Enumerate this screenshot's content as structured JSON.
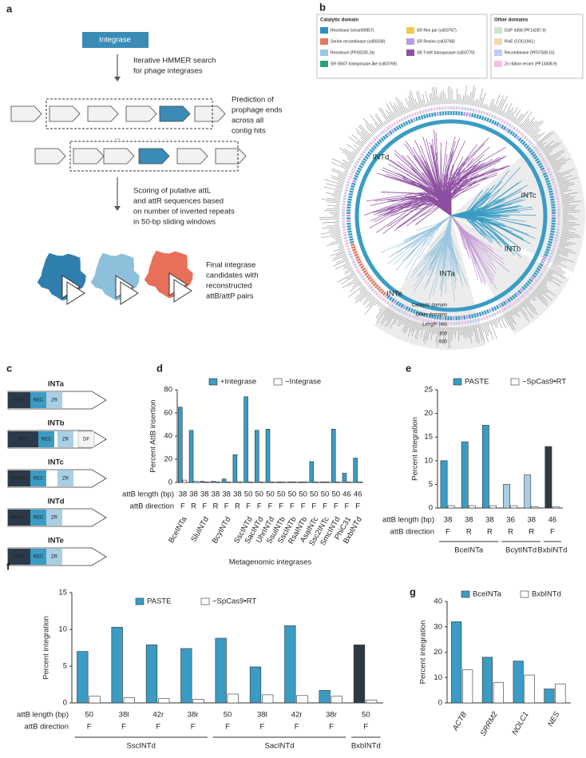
{
  "a": {
    "panel": "a",
    "box": "Integrase",
    "ellipsis": "...",
    "steps": [
      [
        "Iterative HMMER search",
        "for phage integrases"
      ],
      [
        "Prediction of",
        "prophage ends",
        "across all",
        "contig hits"
      ],
      [
        "Scoring of putative attL",
        "and attR sequences based",
        "on number of inverted repeats",
        "in 50-bp sliding windows"
      ],
      [
        "Final integrase",
        "candidates with",
        "reconstructed",
        "attB/attP pairs"
      ]
    ]
  },
  "b": {
    "panel": "b",
    "legend": [
      {
        "title": "Catalytic domain",
        "items": [
          {
            "name": "Resolvase (smart00857)",
            "color": "#2e8fbf"
          },
          {
            "name": "Serine recombinase (cd00338)",
            "color": "#e4785e"
          },
          {
            "name": "Resolvase (PF00239.24)",
            "color": "#9dc6df"
          },
          {
            "name": "SR IS607 transposase-like (cd03769)",
            "color": "#2aa37a"
          },
          {
            "name": "SR Res par (cd03767)",
            "color": "#f1c84b"
          },
          {
            "name": "SR ResInv (cd03768)",
            "color": "#b49de0"
          },
          {
            "name": "SR TndX transposase (cd03770)",
            "color": "#8d4ea0"
          }
        ]
      },
      {
        "title": "Other domains",
        "items": [
          {
            "name": "DUF 4368 (PF14287.9)",
            "color": "#c9e6c4"
          },
          {
            "name": "PinE (COG1961)",
            "color": "#f6d6b0"
          },
          {
            "name": "Recombinase (PF07508.16)",
            "color": "#c5c9ee"
          },
          {
            "name": "Zn ribbon recom (PF13408.9)",
            "color": "#f2c3e0"
          }
        ]
      }
    ],
    "clades": [
      "INTd",
      "INTc",
      "INTb",
      "INTa",
      "INTe"
    ],
    "ring_labels": [
      "Catalytic domain",
      "Other domains",
      "Length (aa)"
    ],
    "length_ticks": [
      300,
      600
    ]
  },
  "c": {
    "panel": "c",
    "proteins": [
      {
        "name": "INTa",
        "domains": [
          "RES",
          "REC",
          "ZR"
        ]
      },
      {
        "name": "INTb",
        "domains": [
          "RES",
          "REC",
          "ZR",
          "DF"
        ]
      },
      {
        "name": "INTc",
        "domains": [
          "SMRES",
          "REC",
          "ZR"
        ]
      },
      {
        "name": "INTd",
        "domains": [
          "SMRES",
          "REC",
          "ZR"
        ]
      },
      {
        "name": "INTe",
        "domains": [
          "RES",
          "REC",
          "ZR"
        ]
      }
    ]
  },
  "chart_data": [
    {
      "panel": "d",
      "type": "bar",
      "ylabel": "Percent AttB insertion",
      "xlabel": "Metagenomic integrases",
      "ylim": [
        0,
        80
      ],
      "yticks": [
        0,
        20,
        40,
        60,
        80
      ],
      "categories": [
        "BceINTa",
        null,
        "SluINTd",
        null,
        "BcyINTd",
        null,
        "SscINTd",
        "SacINTd",
        "UhrINTd",
        "SsuINTb",
        "SscINTb",
        "RsaINTb",
        "AsaINTc",
        "Ssc2INTc",
        "SmcINTd",
        "PhiC31",
        "BxbINTd"
      ],
      "rows": [
        {
          "label": "attB length (bp)",
          "values": [
            38,
            38,
            38,
            38,
            38,
            38,
            50,
            50,
            50,
            50,
            50,
            50,
            50,
            50,
            50,
            46,
            46
          ]
        },
        {
          "label": "attB direction",
          "values": [
            "F",
            "R",
            "F",
            "R",
            "F",
            "R",
            "F",
            "F",
            "F",
            "F",
            "F",
            "F",
            "F",
            "F",
            "F",
            "F",
            "F"
          ]
        }
      ],
      "series": [
        {
          "name": "+Integrase",
          "color": "#3a9cc4",
          "values": [
            65,
            45,
            1,
            1,
            3,
            24,
            74,
            45,
            46,
            0.5,
            0.5,
            0.5,
            18,
            0.5,
            46,
            8,
            21
          ]
        },
        {
          "name": "−Integrase",
          "color": "#ffffff",
          "values": [
            2,
            1,
            0.5,
            0.5,
            0.5,
            0.5,
            0.5,
            0.5,
            0.5,
            0.5,
            0.5,
            0.5,
            0.5,
            0.5,
            0.5,
            0.5,
            0.5
          ]
        }
      ]
    },
    {
      "panel": "e",
      "type": "bar",
      "ylabel": "Percent integration",
      "ylim": [
        0,
        25
      ],
      "yticks": [
        0,
        5,
        10,
        15,
        20,
        25
      ],
      "rows": [
        {
          "label": "attB length (bp)",
          "values": [
            38,
            38,
            38,
            36,
            38,
            46
          ]
        },
        {
          "label": "attB direction",
          "values": [
            "F",
            "R",
            "R",
            "R",
            "R",
            "F"
          ]
        }
      ],
      "group": [
        "BceINTa",
        "BceINTa",
        "BceINTa",
        "BcytINTd",
        "BcytINTd",
        "BxbINTd"
      ],
      "series": [
        {
          "name": "PASTE",
          "colors": [
            "#3a9cc4",
            "#3a9cc4",
            "#3a9cc4",
            "#a8cfe3",
            "#a8cfe3",
            "#2d3a45"
          ],
          "values": [
            10,
            14,
            17.5,
            5,
            7,
            13
          ]
        },
        {
          "name": "−SpCas9•RT",
          "color": "#ffffff",
          "values": [
            0.5,
            0.5,
            0.5,
            0.5,
            0.3,
            0.3
          ]
        }
      ]
    },
    {
      "panel": "f",
      "type": "bar",
      "ylabel": "Percent integration",
      "ylim": [
        0,
        15
      ],
      "yticks": [
        0,
        5,
        10,
        15
      ],
      "rows": [
        {
          "label": "attB length (bp)",
          "values": [
            50,
            "38l",
            "42r",
            "38r",
            50,
            "38l",
            "42r",
            "38r",
            50
          ]
        },
        {
          "label": "attB direction",
          "values": [
            "F",
            "F",
            "F",
            "F",
            "F",
            "F",
            "F",
            "F",
            "F"
          ]
        }
      ],
      "group": [
        "SscINTd",
        "SscINTd",
        "SscINTd",
        "SscINTd",
        "SacINTd",
        "SacINTd",
        "SacINTd",
        "SacINTd",
        "BxbINTd"
      ],
      "series": [
        {
          "name": "PASTE",
          "colors": [
            "#3a9cc4",
            "#3a9cc4",
            "#3a9cc4",
            "#3a9cc4",
            "#3a9cc4",
            "#3a9cc4",
            "#3a9cc4",
            "#3a9cc4",
            "#2d3a45"
          ],
          "values": [
            7,
            10.3,
            7.9,
            7.4,
            8.8,
            4.9,
            10.5,
            1.7,
            7.9
          ]
        },
        {
          "name": "−SpCas9•RT",
          "color": "#ffffff",
          "values": [
            0.9,
            0.7,
            0.6,
            0.5,
            1.2,
            1.1,
            1,
            0.9,
            0.4
          ]
        }
      ]
    },
    {
      "panel": "g",
      "type": "bar",
      "ylabel": "Percent integration",
      "ylim": [
        0,
        40
      ],
      "yticks": [
        0,
        10,
        20,
        30,
        40
      ],
      "categories": [
        "ACTB",
        "SRRM2",
        "NOLC1",
        "NES"
      ],
      "series": [
        {
          "name": "BceINTa",
          "color": "#3a9cc4",
          "values": [
            32,
            18,
            16.5,
            5.5
          ]
        },
        {
          "name": "BxbINTd",
          "color": "#ffffff",
          "values": [
            13,
            8,
            11,
            7.5
          ]
        }
      ]
    }
  ]
}
